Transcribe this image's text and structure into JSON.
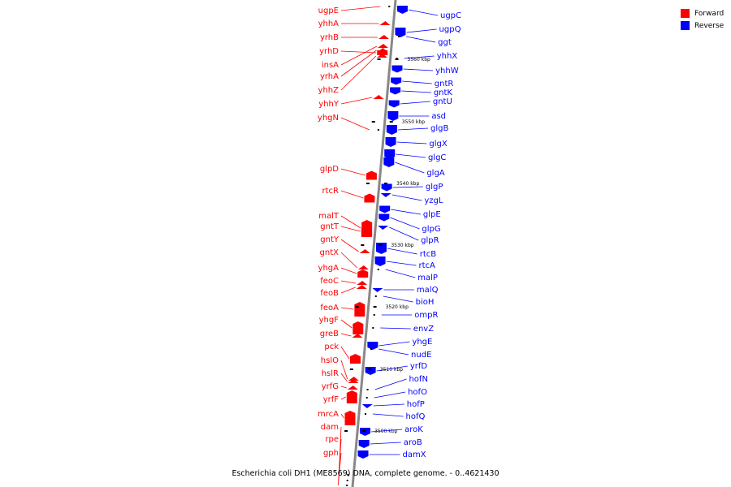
{
  "legend": {
    "forward_label": "Forward",
    "reverse_label": "Reverse",
    "forward_color": "#ff0000",
    "reverse_color": "#0000ff"
  },
  "colors": {
    "forward": "#ff0000",
    "reverse": "#0000ff",
    "backbone": "#888888"
  },
  "caption": "Escherichia coli DH1 (ME8569) DNA, complete genome. - 0..4621430",
  "tick_labels": [
    "3560 kbp",
    "3550 kbp",
    "3540 kbp",
    "3530 kbp",
    "3520 kbp",
    "3510 kbp",
    "3500 kbp"
  ],
  "forward_genes": [
    "ugpE",
    "yhhA",
    "yrhB",
    "yrhD",
    "insA",
    "yrhA",
    "yhhZ",
    "yhhY",
    "yhgN",
    "glpD",
    "rtcR",
    "malT",
    "gntT",
    "gntY",
    "gntX",
    "yhgA",
    "feoC",
    "feoB",
    "feoA",
    "yhgF",
    "greB",
    "pck",
    "hslO",
    "hslR",
    "yrfG",
    "yrfF",
    "mrcA",
    "dam",
    "rpe",
    "gph"
  ],
  "reverse_genes": [
    "ugpC",
    "ugpQ",
    "ggt",
    "yhhX",
    "yhhW",
    "gntR",
    "gntK",
    "gntU",
    "asd",
    "glgB",
    "glgX",
    "glgC",
    "glgA",
    "glgP",
    "yzgL",
    "glpE",
    "glpG",
    "glpR",
    "rtcB",
    "rtcA",
    "malP",
    "malQ",
    "bioH",
    "ompR",
    "envZ",
    "yhgE",
    "nudE",
    "yrfD",
    "hofN",
    "hofO",
    "hofP",
    "hofQ",
    "aroK",
    "aroB",
    "damX"
  ]
}
